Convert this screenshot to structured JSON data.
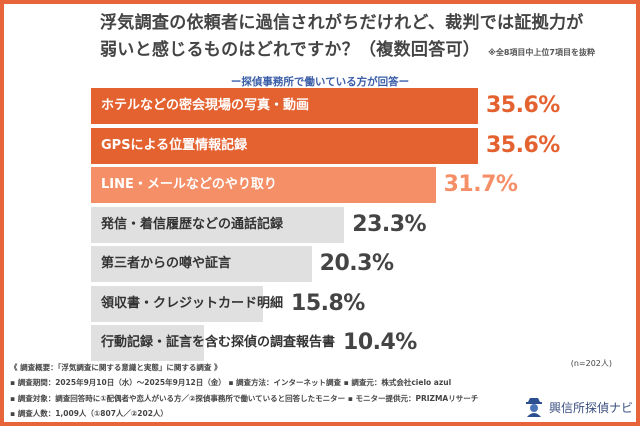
{
  "title_line1": "浮気調査の依頼者に過信されがちだけれど、裁判では証拠力が",
  "title_line2": "弱いと感じるものはどれですか？（複数回答可）",
  "title_note": "※全8項目中上位7項目を抜粋",
  "subtitle": "ー探偵事務所で働いている方が回答ー",
  "chart_data": {
    "type": "bar",
    "orientation": "horizontal",
    "categories": [
      "ホテルなどの密会現場の写真・動画",
      "GPSによる位置情報記録",
      "LINE・メールなどのやり取り",
      "発信・着信履歴などの通話記録",
      "第三者からの噂や証言",
      "領収書・クレジットカード明細",
      "行動記録・証言を含む探偵の調査報告書"
    ],
    "values": [
      35.6,
      35.6,
      31.7,
      23.3,
      20.3,
      15.8,
      10.4
    ],
    "value_labels": [
      "35.6%",
      "35.6%",
      "31.7%",
      "23.3%",
      "20.3%",
      "15.8%",
      "10.4%"
    ],
    "bar_colors": [
      "#e4622f",
      "#e4622f",
      "#f58f68",
      "#e0e0e0",
      "#e0e0e0",
      "#e0e0e0",
      "#e0e0e0"
    ],
    "label_colors": [
      "#ffffff",
      "#ffffff",
      "#ffffff",
      "#333333",
      "#333333",
      "#333333",
      "#333333"
    ],
    "value_colors": [
      "#e4622f",
      "#e4622f",
      "#f58f68",
      "#444444",
      "#444444",
      "#444444",
      "#444444"
    ],
    "xlim": [
      0,
      35.6
    ],
    "grid": false
  },
  "sample_size": "(n=202人)",
  "footer": [
    "《 調査概要：「浮気調査に関する意識と実態」に関する調査 》",
    "▪ 調査期間：2025年9月10日（水）〜2025年9月12日（金）  ▪ 調査方法：インターネット調査    ▪ 調査元：株式会社cielo azul",
    "▪ 調査対象：調査回答時に①配偶者や恋人がいる方／②探偵事務所で働いていると回答したモニター   ▪ モニター提供元：PRIZMAリサーチ",
    "▪ 調査人数：1,009人（①807人／②202人）"
  ],
  "logo_text": "興信所探偵ナビ",
  "frame_color": "#e8643a"
}
